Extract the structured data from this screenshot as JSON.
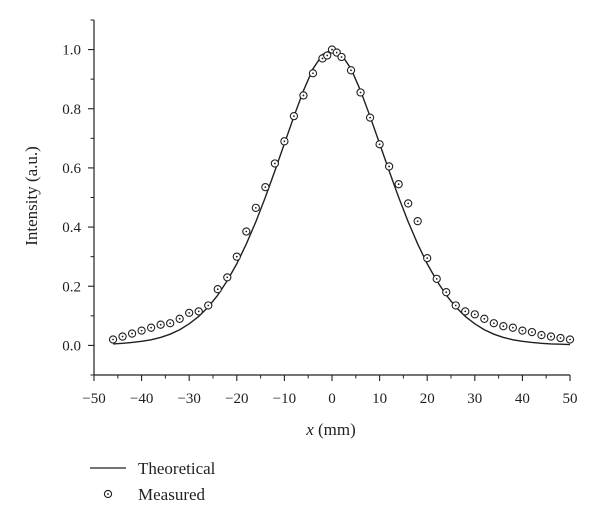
{
  "chart_data": {
    "type": "scatter",
    "xlabel_var": "x",
    "xlabel_unit": " (mm)",
    "ylabel": "Intensity (a.u.)",
    "xlim": [
      -50,
      50
    ],
    "ylim": [
      -0.1,
      1.1
    ],
    "xticks": [
      "−50",
      "−40",
      "−30",
      "−20",
      "−10",
      "0",
      "10",
      "20",
      "30",
      "40",
      "50"
    ],
    "xtick_values": [
      -50,
      -40,
      -30,
      -20,
      -10,
      0,
      10,
      20,
      30,
      40,
      50
    ],
    "yticks": [
      "0.0",
      "0.2",
      "0.4",
      "0.6",
      "0.8",
      "1.0"
    ],
    "ytick_values": [
      0.0,
      0.2,
      0.4,
      0.6,
      0.8,
      1.0
    ],
    "grid": false,
    "legend_position": "bottom-left, below plot",
    "series": [
      {
        "name": "Theoretical",
        "kind": "line",
        "color": "#231f20",
        "x": [
          -46,
          -44,
          -42,
          -40,
          -38,
          -36,
          -34,
          -32,
          -30,
          -28,
          -26,
          -24,
          -22,
          -20,
          -18,
          -16,
          -14,
          -12,
          -10,
          -8,
          -6,
          -4,
          -2,
          0,
          2,
          4,
          6,
          8,
          10,
          12,
          14,
          16,
          18,
          20,
          22,
          24,
          26,
          28,
          30,
          32,
          34,
          36,
          38,
          40,
          42,
          44,
          46,
          48,
          50
        ],
        "y": [
          0.005,
          0.007,
          0.01,
          0.014,
          0.019,
          0.027,
          0.038,
          0.053,
          0.073,
          0.098,
          0.13,
          0.17,
          0.219,
          0.276,
          0.343,
          0.418,
          0.501,
          0.59,
          0.682,
          0.774,
          0.861,
          0.935,
          0.983,
          1.0,
          0.983,
          0.935,
          0.861,
          0.774,
          0.682,
          0.59,
          0.501,
          0.418,
          0.343,
          0.276,
          0.219,
          0.17,
          0.13,
          0.098,
          0.073,
          0.053,
          0.038,
          0.027,
          0.019,
          0.014,
          0.01,
          0.007,
          0.005,
          0.004,
          0.003
        ]
      },
      {
        "name": "Measured",
        "kind": "scatter",
        "color": "#231f20",
        "x": [
          -46,
          -44,
          -42,
          -40,
          -38,
          -36,
          -34,
          -32,
          -30,
          -28,
          -26,
          -24,
          -22,
          -20,
          -18,
          -16,
          -14,
          -12,
          -10,
          -8,
          -6,
          -4,
          -2,
          -1,
          0,
          1,
          2,
          4,
          6,
          8,
          10,
          12,
          14,
          16,
          18,
          20,
          22,
          24,
          26,
          28,
          30,
          32,
          34,
          36,
          38,
          40,
          42,
          44,
          46,
          48,
          50
        ],
        "y": [
          0.02,
          0.03,
          0.04,
          0.05,
          0.06,
          0.07,
          0.075,
          0.09,
          0.11,
          0.115,
          0.135,
          0.19,
          0.23,
          0.3,
          0.385,
          0.465,
          0.535,
          0.615,
          0.69,
          0.775,
          0.845,
          0.92,
          0.97,
          0.98,
          1.0,
          0.99,
          0.975,
          0.93,
          0.855,
          0.77,
          0.68,
          0.605,
          0.545,
          0.48,
          0.42,
          0.295,
          0.225,
          0.18,
          0.135,
          0.115,
          0.105,
          0.09,
          0.075,
          0.065,
          0.06,
          0.05,
          0.045,
          0.035,
          0.03,
          0.025,
          0.02
        ]
      }
    ]
  }
}
